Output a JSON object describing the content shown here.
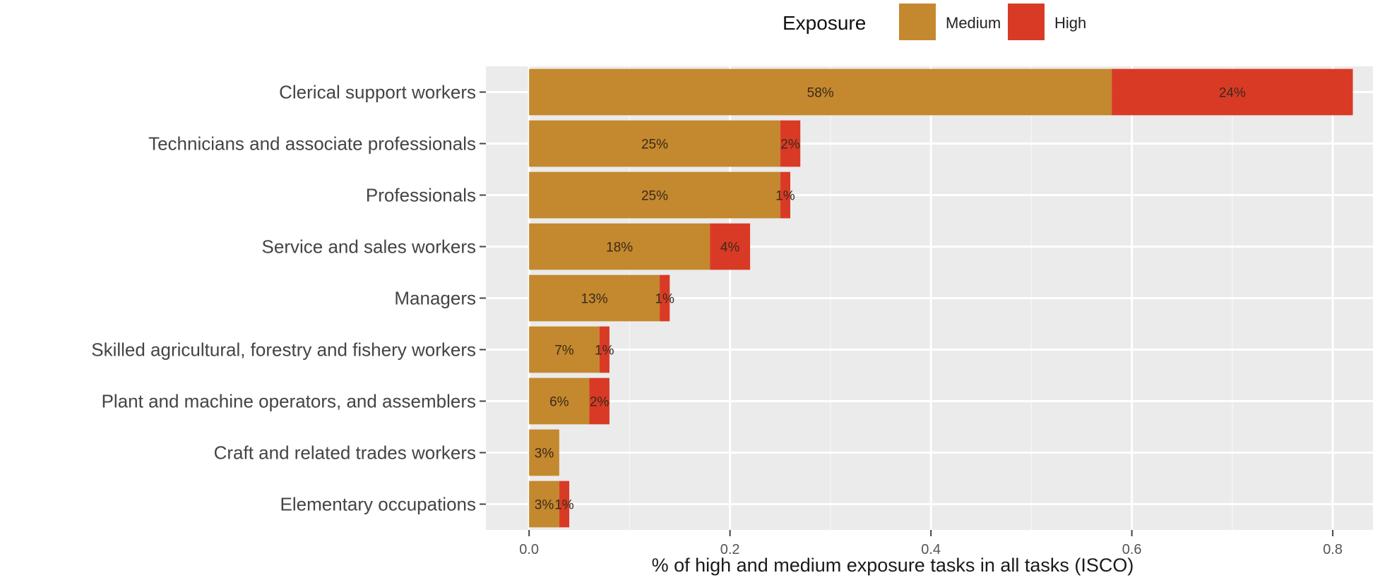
{
  "chart_data": {
    "type": "bar",
    "orientation": "horizontal",
    "stacked": true,
    "categories": [
      "Clerical support workers",
      "Technicians and associate professionals",
      "Professionals",
      "Service and sales workers",
      "Managers",
      "Skilled agricultural, forestry and fishery workers",
      "Plant and machine operators, and assemblers",
      "Craft and related trades workers",
      "Elementary occupations"
    ],
    "series": [
      {
        "name": "Medium",
        "color": "#C4882E",
        "values": [
          0.58,
          0.25,
          0.25,
          0.18,
          0.13,
          0.07,
          0.06,
          0.03,
          0.03
        ],
        "labels": [
          "58%",
          "25%",
          "25%",
          "18%",
          "13%",
          "7%",
          "6%",
          "3%",
          "3%"
        ]
      },
      {
        "name": "High",
        "color": "#D93A26",
        "values": [
          0.24,
          0.02,
          0.01,
          0.04,
          0.01,
          0.01,
          0.02,
          0.0,
          0.01
        ],
        "labels": [
          "24%",
          "2%",
          "1%",
          "4%",
          "1%",
          "1%",
          "2%",
          "",
          "1%"
        ]
      }
    ],
    "xlabel": "% of high and medium exposure tasks in all tasks (ISCO)",
    "ylabel": "",
    "xlim": [
      -0.043,
      0.84
    ],
    "xticks": [
      0.0,
      0.2,
      0.4,
      0.6,
      0.8
    ],
    "xtick_labels": [
      "0.0",
      "0.2",
      "0.4",
      "0.6",
      "0.8"
    ],
    "legend": {
      "title": "Exposure",
      "position": "top",
      "entries": [
        "Medium",
        "High"
      ]
    },
    "grid": true,
    "panel_background": "#EBEBEB"
  }
}
